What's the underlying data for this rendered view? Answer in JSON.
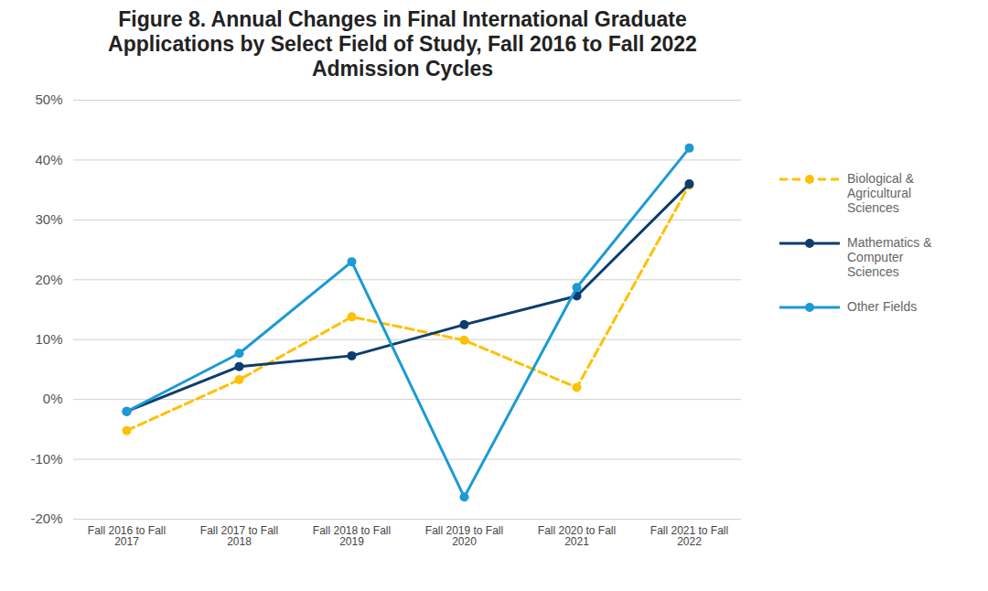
{
  "chart_data": {
    "type": "line",
    "title": "Figure 8. Annual Changes in Final International Graduate Applications by Select Field of Study, Fall 2016 to Fall 2022 Admission Cycles",
    "categories": [
      "Fall 2016 to Fall 2017",
      "Fall 2017 to Fall 2018",
      "Fall 2018 to Fall 2019",
      "Fall 2019 to Fall 2020",
      "Fall 2020 to Fall 2021",
      "Fall 2021 to Fall 2022"
    ],
    "series": [
      {
        "name": "Biological & Agricultural Sciences",
        "color": "#ffc000",
        "line_style": "dashed",
        "marker": "circle",
        "values": [
          -5.2,
          3.3,
          13.8,
          9.9,
          2.0,
          35.8
        ]
      },
      {
        "name": "Mathematics & Computer Sciences",
        "color": "#0d3d6e",
        "line_style": "solid",
        "marker": "circle",
        "values": [
          -2.0,
          5.5,
          7.3,
          12.5,
          17.3,
          36.0
        ]
      },
      {
        "name": "Other Fields",
        "color": "#1b9ad6",
        "line_style": "solid",
        "marker": "circle",
        "values": [
          -2.0,
          7.7,
          23.0,
          -16.3,
          18.7,
          42.0
        ]
      }
    ],
    "ylim": [
      -20,
      50
    ],
    "yticks": [
      {
        "value": -20,
        "label": "-20%"
      },
      {
        "value": -10,
        "label": "-10%"
      },
      {
        "value": 0,
        "label": "0%"
      },
      {
        "value": 10,
        "label": "10%"
      },
      {
        "value": 20,
        "label": "20%"
      },
      {
        "value": 30,
        "label": "30%"
      },
      {
        "value": 40,
        "label": "40%"
      },
      {
        "value": 50,
        "label": "50%"
      }
    ],
    "grid": true,
    "legend": "right"
  }
}
